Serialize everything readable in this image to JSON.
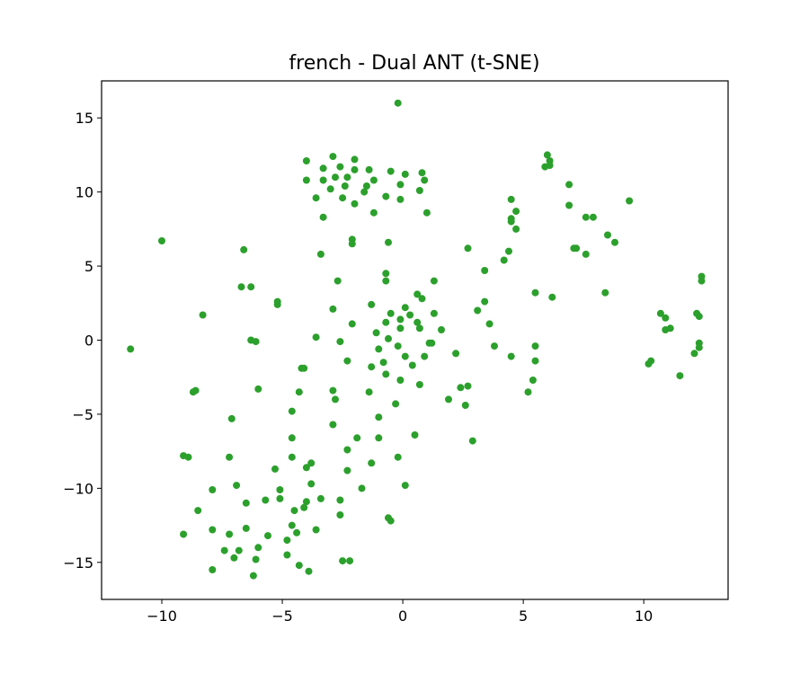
{
  "chart_data": {
    "type": "scatter",
    "title": "french - Dual ANT (t-SNE)",
    "xlabel": "",
    "ylabel": "",
    "xlim": [
      -12.5,
      13.5
    ],
    "ylim": [
      -17.5,
      17.5
    ],
    "x_ticks": [
      -10,
      -5,
      0,
      5,
      10
    ],
    "y_ticks": [
      -15,
      -10,
      -5,
      0,
      5,
      10,
      15
    ],
    "x_tick_labels": [
      "−10",
      "−5",
      "0",
      "5",
      "10"
    ],
    "y_tick_labels": [
      "−15",
      "−10",
      "−5",
      "0",
      "5",
      "10",
      "15"
    ],
    "grid": false,
    "marker_color": "#2ca02c",
    "series": [
      {
        "points": [
          [
            -0.2,
            16.0
          ],
          [
            -4.0,
            12.1
          ],
          [
            -2.9,
            12.4
          ],
          [
            -2.0,
            12.2
          ],
          [
            -3.3,
            11.6
          ],
          [
            -2.6,
            11.7
          ],
          [
            -1.4,
            11.5
          ],
          [
            -0.5,
            11.4
          ],
          [
            0.1,
            11.2
          ],
          [
            0.8,
            11.3
          ],
          [
            -4.0,
            10.8
          ],
          [
            -3.3,
            10.8
          ],
          [
            -2.8,
            11.0
          ],
          [
            -2.3,
            11.0
          ],
          [
            -1.2,
            10.8
          ],
          [
            -2.0,
            11.5
          ],
          [
            -0.1,
            10.5
          ],
          [
            0.9,
            10.8
          ],
          [
            -2.4,
            10.4
          ],
          [
            -3.0,
            10.2
          ],
          [
            -1.5,
            10.4
          ],
          [
            -1.6,
            10.0
          ],
          [
            0.7,
            10.1
          ],
          [
            -3.6,
            9.6
          ],
          [
            -2.5,
            9.6
          ],
          [
            -0.7,
            9.7
          ],
          [
            -0.1,
            9.5
          ],
          [
            -2.0,
            9.2
          ],
          [
            -1.2,
            8.6
          ],
          [
            1.0,
            8.6
          ],
          [
            -3.3,
            8.3
          ],
          [
            -2.1,
            6.8
          ],
          [
            -2.1,
            6.5
          ],
          [
            -0.6,
            6.6
          ],
          [
            -3.4,
            5.8
          ],
          [
            -10.0,
            6.7
          ],
          [
            -6.6,
            6.1
          ],
          [
            -6.7,
            3.6
          ],
          [
            -6.3,
            3.6
          ],
          [
            -5.2,
            2.6
          ],
          [
            -5.2,
            2.4
          ],
          [
            -8.3,
            1.7
          ],
          [
            -11.3,
            -0.6
          ],
          [
            -6.3,
            0.0
          ],
          [
            -6.1,
            -0.1
          ],
          [
            -3.6,
            0.2
          ],
          [
            -2.7,
            4.0
          ],
          [
            -2.9,
            2.1
          ],
          [
            -2.1,
            1.1
          ],
          [
            -2.6,
            -0.1
          ],
          [
            -2.3,
            -1.4
          ],
          [
            -4.2,
            -1.9
          ],
          [
            -4.1,
            -1.9
          ],
          [
            -1.3,
            2.4
          ],
          [
            -0.7,
            4.5
          ],
          [
            -0.7,
            4.0
          ],
          [
            0.6,
            3.1
          ],
          [
            0.8,
            2.8
          ],
          [
            1.3,
            4.0
          ],
          [
            0.1,
            2.2
          ],
          [
            -0.5,
            1.8
          ],
          [
            0.3,
            1.7
          ],
          [
            1.3,
            1.8
          ],
          [
            -0.7,
            1.2
          ],
          [
            -0.1,
            1.4
          ],
          [
            0.6,
            1.2
          ],
          [
            -0.1,
            0.8
          ],
          [
            0.7,
            0.8
          ],
          [
            1.6,
            0.7
          ],
          [
            -1.1,
            0.5
          ],
          [
            -0.6,
            0.1
          ],
          [
            -1.0,
            -0.6
          ],
          [
            -0.2,
            -0.4
          ],
          [
            1.1,
            -0.2
          ],
          [
            0.1,
            -1.1
          ],
          [
            0.9,
            -1.1
          ],
          [
            -0.8,
            -1.5
          ],
          [
            -1.3,
            -1.8
          ],
          [
            0.4,
            -1.7
          ],
          [
            -0.7,
            -2.3
          ],
          [
            -0.1,
            -2.7
          ],
          [
            0.7,
            -3.0
          ],
          [
            -1.4,
            -3.5
          ],
          [
            -4.3,
            -3.5
          ],
          [
            -6.0,
            -3.3
          ],
          [
            -8.6,
            -3.4
          ],
          [
            -8.7,
            -3.5
          ],
          [
            -2.9,
            -3.4
          ],
          [
            -2.8,
            -4.0
          ],
          [
            -0.3,
            -4.3
          ],
          [
            -4.6,
            -4.8
          ],
          [
            -7.1,
            -5.3
          ],
          [
            -1.0,
            -5.2
          ],
          [
            -2.9,
            -5.7
          ],
          [
            -1.9,
            -6.6
          ],
          [
            -1.0,
            -6.6
          ],
          [
            0.5,
            -6.4
          ],
          [
            -4.6,
            -6.6
          ],
          [
            -2.3,
            -7.4
          ],
          [
            -0.2,
            -7.9
          ],
          [
            -9.1,
            -7.8
          ],
          [
            -8.9,
            -7.9
          ],
          [
            -7.2,
            -7.9
          ],
          [
            -4.6,
            -7.9
          ],
          [
            -3.8,
            -8.3
          ],
          [
            -4.0,
            -8.6
          ],
          [
            -5.3,
            -8.7
          ],
          [
            -2.3,
            -8.8
          ],
          [
            -1.3,
            -8.3
          ],
          [
            -6.9,
            -9.8
          ],
          [
            -3.8,
            -9.7
          ],
          [
            -1.7,
            -10.0
          ],
          [
            0.1,
            -9.8
          ],
          [
            -7.9,
            -10.1
          ],
          [
            -5.1,
            -10.1
          ],
          [
            -5.1,
            -10.7
          ],
          [
            -5.7,
            -10.8
          ],
          [
            -3.4,
            -10.7
          ],
          [
            -2.6,
            -10.8
          ],
          [
            -6.5,
            -11.0
          ],
          [
            -4.0,
            -10.9
          ],
          [
            -4.1,
            -11.3
          ],
          [
            -4.5,
            -11.5
          ],
          [
            -8.5,
            -11.5
          ],
          [
            -2.6,
            -11.8
          ],
          [
            -0.6,
            -12.0
          ],
          [
            -0.5,
            -12.2
          ],
          [
            -4.6,
            -12.5
          ],
          [
            -7.9,
            -12.8
          ],
          [
            -6.5,
            -12.7
          ],
          [
            -3.6,
            -12.8
          ],
          [
            -4.4,
            -13.0
          ],
          [
            -9.1,
            -13.1
          ],
          [
            -7.2,
            -13.1
          ],
          [
            -5.6,
            -13.2
          ],
          [
            -4.8,
            -13.5
          ],
          [
            -6.0,
            -14.0
          ],
          [
            -7.4,
            -14.2
          ],
          [
            -6.8,
            -14.2
          ],
          [
            -4.8,
            -14.5
          ],
          [
            -7.0,
            -14.7
          ],
          [
            -6.1,
            -14.8
          ],
          [
            -2.5,
            -14.9
          ],
          [
            -2.2,
            -14.9
          ],
          [
            -4.3,
            -15.2
          ],
          [
            -7.9,
            -15.5
          ],
          [
            -3.9,
            -15.6
          ],
          [
            -6.2,
            -15.9
          ],
          [
            2.7,
            6.2
          ],
          [
            3.4,
            4.7
          ],
          [
            3.4,
            2.6
          ],
          [
            3.1,
            2.0
          ],
          [
            3.6,
            1.1
          ],
          [
            2.2,
            -0.9
          ],
          [
            3.8,
            -0.4
          ],
          [
            1.2,
            -0.2
          ],
          [
            2.4,
            -3.2
          ],
          [
            2.7,
            -3.1
          ],
          [
            1.9,
            -4.0
          ],
          [
            2.6,
            -4.4
          ],
          [
            2.9,
            -6.8
          ],
          [
            4.5,
            -1.1
          ],
          [
            5.2,
            -3.5
          ],
          [
            5.4,
            -2.7
          ],
          [
            5.5,
            -1.4
          ],
          [
            5.5,
            -0.4
          ],
          [
            5.5,
            3.2
          ],
          [
            6.2,
            2.9
          ],
          [
            4.2,
            5.4
          ],
          [
            4.4,
            6.0
          ],
          [
            4.5,
            9.5
          ],
          [
            4.7,
            8.7
          ],
          [
            4.5,
            8.2
          ],
          [
            4.5,
            8.0
          ],
          [
            4.7,
            7.5
          ],
          [
            6.0,
            12.5
          ],
          [
            6.1,
            12.1
          ],
          [
            6.1,
            11.8
          ],
          [
            5.9,
            11.7
          ],
          [
            6.9,
            10.5
          ],
          [
            6.9,
            9.1
          ],
          [
            7.6,
            8.3
          ],
          [
            7.9,
            8.3
          ],
          [
            9.4,
            9.4
          ],
          [
            8.5,
            7.1
          ],
          [
            8.8,
            6.6
          ],
          [
            7.1,
            6.2
          ],
          [
            7.2,
            6.2
          ],
          [
            7.6,
            5.8
          ],
          [
            8.4,
            3.2
          ],
          [
            10.7,
            1.8
          ],
          [
            10.9,
            1.5
          ],
          [
            10.9,
            0.7
          ],
          [
            11.1,
            0.8
          ],
          [
            10.2,
            -1.6
          ],
          [
            10.3,
            -1.4
          ],
          [
            11.5,
            -2.4
          ],
          [
            12.1,
            -0.9
          ],
          [
            12.2,
            1.8
          ],
          [
            12.3,
            1.6
          ],
          [
            12.3,
            -0.2
          ],
          [
            12.3,
            -0.5
          ],
          [
            12.4,
            4.3
          ],
          [
            12.4,
            4.0
          ]
        ]
      }
    ]
  }
}
